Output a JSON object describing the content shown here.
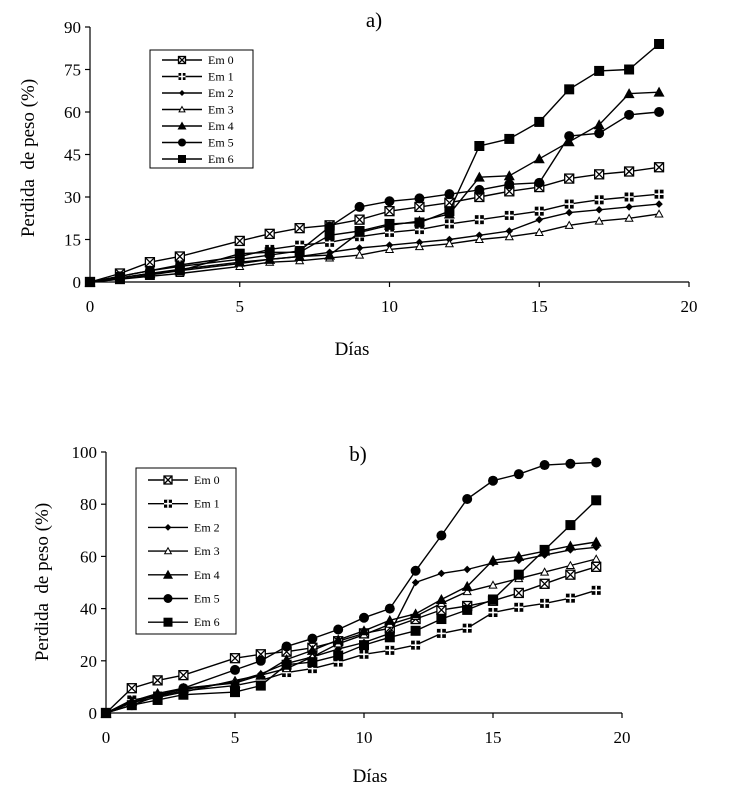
{
  "chart_data": [
    {
      "type": "line",
      "title": "a)",
      "xlabel": "Días",
      "ylabel": "Perdida  de peso (%)",
      "xlim": [
        0,
        20
      ],
      "ylim": [
        0,
        90
      ],
      "xticks": [
        0,
        5,
        10,
        15,
        20
      ],
      "yticks": [
        0,
        15,
        30,
        45,
        60,
        75,
        90
      ],
      "grid": false,
      "legend_position": "top-left",
      "x": [
        0,
        1,
        2,
        3,
        5,
        6,
        7,
        8,
        9,
        10,
        11,
        12,
        13,
        14,
        15,
        16,
        17,
        18,
        19
      ],
      "series": [
        {
          "name": "Em 0",
          "marker": "box-x",
          "values": [
            0,
            3,
            7,
            9,
            14.5,
            17,
            19,
            20,
            22,
            25,
            26.5,
            28,
            30,
            32,
            33.5,
            36.5,
            38,
            39,
            40.5
          ]
        },
        {
          "name": "Em 1",
          "marker": "plus-box",
          "values": [
            0,
            2,
            4,
            6,
            9,
            11.5,
            13,
            14,
            16,
            17.5,
            18.5,
            20.5,
            22,
            23.5,
            25,
            27.5,
            29,
            30,
            31
          ]
        },
        {
          "name": "Em 2",
          "marker": "small-diamond",
          "values": [
            0,
            1.5,
            3,
            4,
            6.5,
            8,
            9,
            10.5,
            12,
            13,
            14,
            15,
            16.5,
            18,
            22,
            24.5,
            25.5,
            26.5,
            27.5
          ]
        },
        {
          "name": "Em 3",
          "marker": "small-triangle",
          "values": [
            0,
            1,
            2,
            3,
            5.5,
            7,
            7.5,
            8.5,
            9.5,
            11.5,
            12.5,
            13.5,
            15,
            16,
            17.5,
            20,
            21.5,
            22.5,
            24
          ]
        },
        {
          "name": "Em 4",
          "marker": "triangle",
          "values": [
            0,
            1.5,
            3,
            4.5,
            7,
            8,
            9,
            9.5,
            17.5,
            20,
            21.5,
            24,
            37,
            37.5,
            43.5,
            49.5,
            55.5,
            66.5,
            67
          ]
        },
        {
          "name": "Em 5",
          "marker": "circle",
          "values": [
            0,
            2,
            4,
            5.5,
            8,
            9.5,
            11,
            19.5,
            26.5,
            28.5,
            29.5,
            31,
            32.5,
            34.5,
            35,
            51.5,
            52.5,
            59,
            60
          ]
        },
        {
          "name": "Em 6",
          "marker": "square",
          "values": [
            0,
            1,
            2.5,
            4,
            10,
            10.5,
            10.5,
            16.5,
            18,
            20.5,
            21,
            25,
            48,
            50.5,
            56.5,
            68,
            74.5,
            75,
            84
          ]
        }
      ]
    },
    {
      "type": "line",
      "title": "b)",
      "xlabel": "Días",
      "ylabel": "Perdida  de peso (%)",
      "xlim": [
        0,
        20
      ],
      "ylim": [
        0,
        100
      ],
      "xticks": [
        0,
        5,
        10,
        15,
        20
      ],
      "yticks": [
        0,
        20,
        40,
        60,
        80,
        100
      ],
      "grid": false,
      "legend_position": "top-left",
      "x": [
        0,
        1,
        2,
        3,
        5,
        6,
        7,
        8,
        9,
        10,
        11,
        12,
        13,
        14,
        15,
        16,
        17,
        18,
        19
      ],
      "series": [
        {
          "name": "Em 0",
          "marker": "box-x",
          "values": [
            0,
            9.5,
            12.5,
            14.5,
            21,
            22.5,
            23.5,
            25,
            27.5,
            30.5,
            32.5,
            36,
            39.5,
            41,
            43,
            46,
            49.5,
            53,
            56
          ]
        },
        {
          "name": "Em 1",
          "marker": "plus-box",
          "values": [
            0,
            5,
            6.5,
            8.5,
            10.5,
            12.5,
            15.5,
            17,
            19.5,
            22.5,
            24,
            26,
            30.5,
            32.5,
            38.5,
            40.5,
            42,
            44,
            47
          ]
        },
        {
          "name": "Em 2",
          "marker": "small-diamond",
          "values": [
            0,
            4,
            7,
            9,
            12,
            15,
            19,
            21.5,
            24.5,
            27,
            30.5,
            50,
            53.5,
            55,
            57.5,
            58.5,
            60.5,
            62.5,
            63.5
          ]
        },
        {
          "name": "Em 3",
          "marker": "small-triangle",
          "values": [
            0,
            4,
            6,
            8,
            12.5,
            14.5,
            17,
            21.5,
            26.5,
            30,
            34,
            37,
            42,
            46.5,
            49,
            51.5,
            54,
            56.5,
            59
          ]
        },
        {
          "name": "Em 4",
          "marker": "triangle",
          "values": [
            0,
            4.5,
            7.5,
            9.5,
            11.5,
            14.5,
            20.5,
            24,
            28,
            31.5,
            35.5,
            38,
            43.5,
            48.5,
            58.5,
            60,
            62,
            64,
            65.5
          ]
        },
        {
          "name": "Em 5",
          "marker": "circle",
          "values": [
            0,
            3,
            6.5,
            9.5,
            16.5,
            20,
            25.5,
            28.5,
            32,
            36.5,
            40,
            54.5,
            68,
            82,
            89,
            91.5,
            95,
            95.5,
            96
          ]
        },
        {
          "name": "Em 6",
          "marker": "square",
          "values": [
            0,
            3,
            5,
            7,
            8,
            10.5,
            18.5,
            19.5,
            22,
            26,
            29,
            31.5,
            36,
            39.5,
            43.5,
            53,
            62.5,
            72,
            81.5
          ]
        }
      ]
    }
  ]
}
